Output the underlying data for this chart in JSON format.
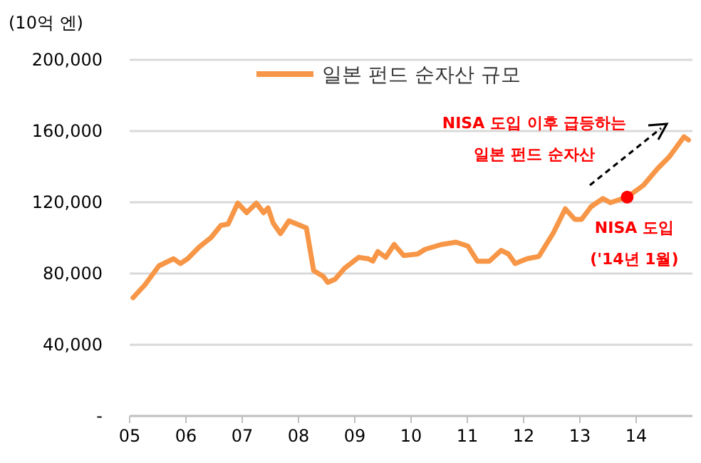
{
  "chart_data": {
    "type": "line",
    "ylabel": "(10억 엔)",
    "x": [
      2005.06,
      2005.27,
      2005.52,
      2005.78,
      2005.9,
      2006.03,
      2006.24,
      2006.45,
      2006.62,
      2006.75,
      2006.92,
      2007.08,
      2007.25,
      2007.38,
      2007.46,
      2007.55,
      2007.68,
      2007.83,
      2007.97,
      2008.14,
      2008.27,
      2008.44,
      2008.52,
      2008.65,
      2008.82,
      2009.07,
      2009.24,
      2009.32,
      2009.41,
      2009.55,
      2009.7,
      2009.87,
      2010.12,
      2010.25,
      2010.54,
      2010.8,
      2011.01,
      2011.18,
      2011.39,
      2011.6,
      2011.73,
      2011.85,
      2012.06,
      2012.27,
      2012.53,
      2012.74,
      2012.91,
      2013.03,
      2013.2,
      2013.41,
      2013.54,
      2013.84,
      2014.13,
      2014.38,
      2014.59,
      2014.85,
      2014.93
    ],
    "series": [
      {
        "name": "일본 펀드 순자산 규모",
        "color": "#f79646",
        "values": [
          66400,
          73600,
          84300,
          88300,
          85600,
          88300,
          95000,
          100300,
          107000,
          107800,
          119500,
          114200,
          119500,
          114200,
          116800,
          108300,
          102400,
          109600,
          107800,
          105600,
          81600,
          78400,
          75000,
          76800,
          83000,
          89100,
          88300,
          87000,
          92300,
          89100,
          96300,
          90100,
          91000,
          93600,
          96300,
          97600,
          95400,
          86900,
          86900,
          93000,
          91000,
          85600,
          88300,
          89600,
          102900,
          116300,
          110400,
          110400,
          117600,
          122100,
          119800,
          122900,
          129600,
          138900,
          145600,
          156800,
          155000
        ]
      },
      {
        "type": "scatter",
        "color": "#ff0000",
        "x": [
          2013.84
        ],
        "values": [
          122900
        ]
      }
    ],
    "xlim": [
      2005,
      2015
    ],
    "xticks": [
      {
        "value": 2005,
        "label": "05"
      },
      {
        "value": 2006,
        "label": "06"
      },
      {
        "value": 2007,
        "label": "07"
      },
      {
        "value": 2008,
        "label": "08"
      },
      {
        "value": 2009,
        "label": "09"
      },
      {
        "value": 2010,
        "label": "10"
      },
      {
        "value": 2011,
        "label": "11"
      },
      {
        "value": 2012,
        "label": "12"
      },
      {
        "value": 2013,
        "label": "13"
      },
      {
        "value": 2014,
        "label": "14"
      }
    ],
    "ylim": [
      0,
      200000
    ],
    "yticks": [
      {
        "value": 0,
        "label": "-"
      },
      {
        "value": 40000,
        "label": "40,000"
      },
      {
        "value": 80000,
        "label": "80,000"
      },
      {
        "value": 120000,
        "label": "120,000"
      },
      {
        "value": 160000,
        "label": "160,000"
      },
      {
        "value": 200000,
        "label": "200,000"
      }
    ],
    "grid": "y",
    "legend": "top",
    "annotations": [
      "NISA 도입 이후 급등하는\n일본 펀드 순자산",
      {
        "text": "NISA 도입\n('14년 1월)",
        "x": 2013.84,
        "y": 122900
      }
    ]
  }
}
